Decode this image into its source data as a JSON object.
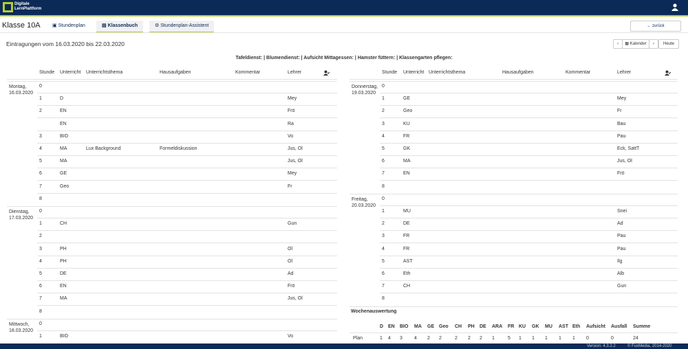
{
  "header": {
    "logo_lines": [
      "Digitale",
      "LernPlattform"
    ]
  },
  "nav": {
    "class_name": "Klasse 10A",
    "tabs": [
      "Stundenplan",
      "Klassenbuch",
      "Stundenplan-Assistent"
    ],
    "back": "zurück"
  },
  "toolbar": {
    "title": "Eintragungen vom 16.03.2020 bis 22.03.2020",
    "calendar": "Kalender",
    "today": "Heute"
  },
  "duties": "Tafeldienst: | Blumendienst: | Aufsicht Mittagessen: | Hamster füttern: | Klassengarten pflegen:",
  "columns": [
    "Stunde",
    "Unterricht",
    "Unterrichtsthema",
    "Hausaufgaben",
    "Kommentar",
    "Lehrer"
  ],
  "left_days": [
    {
      "label": "Montag, 16.03.2020",
      "rows": [
        {
          "stunde": 0
        },
        {
          "stunde": 1,
          "unterricht": "D",
          "lehrer": "Mey"
        },
        {
          "stunde": 2,
          "unterricht": "EN",
          "lehrer": "Frö"
        },
        {
          "unterricht": "EN",
          "lehrer": "Ra"
        },
        {
          "stunde": 3,
          "unterricht": "BIO",
          "lehrer": "Vo"
        },
        {
          "stunde": 4,
          "unterricht": "MA",
          "thema": "Lux Background",
          "hausaufgaben": "Formeldiskussion",
          "lehrer": "Jus, Ol"
        },
        {
          "stunde": 5,
          "unterricht": "MA",
          "lehrer": "Jus, Ol"
        },
        {
          "stunde": 6,
          "unterricht": "GE",
          "lehrer": "Mey"
        },
        {
          "stunde": 7,
          "unterricht": "Geo",
          "lehrer": "Fr"
        },
        {
          "stunde": 8
        }
      ]
    },
    {
      "label": "Dienstag, 17.03.2020",
      "rows": [
        {
          "stunde": 0
        },
        {
          "stunde": 1,
          "unterricht": "CH",
          "lehrer": "Gun"
        },
        {
          "stunde": 2
        },
        {
          "stunde": 3,
          "unterricht": "PH",
          "lehrer": "Ol"
        },
        {
          "stunde": 4,
          "unterricht": "PH",
          "lehrer": "Ol"
        },
        {
          "stunde": 5,
          "unterricht": "DE",
          "lehrer": "Ad"
        },
        {
          "stunde": 6,
          "unterricht": "EN",
          "lehrer": "Frö"
        },
        {
          "stunde": 7,
          "unterricht": "MA",
          "lehrer": "Jus, Ol"
        },
        {
          "stunde": 8
        }
      ]
    },
    {
      "label": "Mittwoch, 18.03.2020",
      "rows": [
        {
          "stunde": 0
        },
        {
          "stunde": 1,
          "unterricht": "BIO",
          "lehrer": "Vo"
        }
      ]
    }
  ],
  "right_days": [
    {
      "label": "Donnerstag, 19.03.2020",
      "rows": [
        {
          "stunde": 0
        },
        {
          "stunde": 1,
          "unterricht": "GE",
          "lehrer": "Mey"
        },
        {
          "stunde": 2,
          "unterricht": "Geo",
          "lehrer": "Fr"
        },
        {
          "stunde": 3,
          "unterricht": "KU",
          "lehrer": "Bau"
        },
        {
          "stunde": 4,
          "unterricht": "FR",
          "lehrer": "Pau"
        },
        {
          "stunde": 5,
          "unterricht": "GK",
          "lehrer": "Eck, SattT"
        },
        {
          "stunde": 6,
          "unterricht": "MA",
          "lehrer": "Jus, Ol"
        },
        {
          "stunde": 7,
          "unterricht": "EN",
          "lehrer": "Frö"
        },
        {
          "stunde": 8
        }
      ]
    },
    {
      "label": "Freitag, 20.03.2020",
      "rows": [
        {
          "stunde": 0
        },
        {
          "stunde": 1,
          "unterricht": "MU",
          "lehrer": "Snei"
        },
        {
          "stunde": 2,
          "unterricht": "DE",
          "lehrer": "Ad"
        },
        {
          "stunde": 3,
          "unterricht": "FR",
          "lehrer": "Pau"
        },
        {
          "stunde": 4,
          "unterricht": "FR",
          "lehrer": "Pau"
        },
        {
          "stunde": 5,
          "unterricht": "AST",
          "lehrer": "Ilg"
        },
        {
          "stunde": 6,
          "unterricht": "Eth",
          "lehrer": "Alb"
        },
        {
          "stunde": 7,
          "unterricht": "CH",
          "lehrer": "Gun"
        },
        {
          "stunde": 8
        }
      ]
    }
  ],
  "summary": {
    "title": "Wochenauswertung",
    "columns": [
      "D",
      "EN",
      "BIO",
      "MA",
      "GE",
      "Geo",
      "CH",
      "PH",
      "DE",
      "ARA",
      "FR",
      "KU",
      "GK",
      "MU",
      "AST",
      "Eth",
      "Aufsicht",
      "Ausfall",
      "Summe"
    ],
    "rows": [
      {
        "label": "Plan",
        "values": [
          1,
          4,
          3,
          4,
          2,
          2,
          2,
          2,
          2,
          1,
          5,
          1,
          1,
          1,
          1,
          1,
          0,
          0,
          24
        ]
      }
    ]
  },
  "footer": {
    "version": "Version: 4.3.2.2",
    "copyright": "© FuxMedia, 2014-2020"
  }
}
